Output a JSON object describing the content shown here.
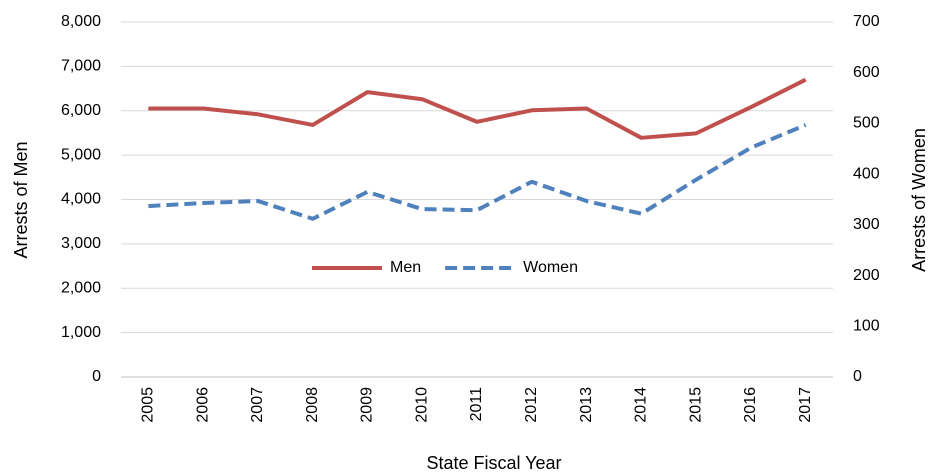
{
  "chart_data": {
    "type": "line",
    "x_label": "State Fiscal Year",
    "y_label": "Arrests of Men",
    "y2_label": "Arrests of Women",
    "categories": [
      "2005",
      "2006",
      "2007",
      "2008",
      "2009",
      "2010",
      "2011",
      "2012",
      "2013",
      "2014",
      "2015",
      "2016",
      "2017"
    ],
    "series": [
      {
        "name": "Men",
        "color": "#c0504d",
        "dash": false,
        "values": [
          6050,
          6050,
          5920,
          5680,
          6420,
          6260,
          5750,
          6010,
          6050,
          5390,
          5490,
          6080,
          6700
        ]
      },
      {
        "name": "Women",
        "color": "#4f81bd",
        "dash": true,
        "axis": "y2",
        "values": [
          337,
          343,
          347,
          312,
          365,
          331,
          329,
          385,
          347,
          322,
          389,
          452,
          497
        ]
      }
    ],
    "ylim": [
      0,
      8000
    ],
    "yticks": [
      0,
      {
        "value": 1000,
        "label": "1,000"
      },
      {
        "value": 2000,
        "label": "2,000"
      },
      {
        "value": 3000,
        "label": "3,000"
      },
      {
        "value": 4000,
        "label": "4,000"
      },
      {
        "value": 5000,
        "label": "5,000"
      },
      {
        "value": 6000,
        "label": "6,000"
      },
      {
        "value": 7000,
        "label": "7,000"
      },
      {
        "value": 8000,
        "label": "8,000"
      }
    ],
    "y2lim": [
      0,
      700
    ],
    "y2ticks": [
      0,
      100,
      200,
      300,
      400,
      500,
      600,
      700
    ],
    "grid": true,
    "legend": "center"
  }
}
